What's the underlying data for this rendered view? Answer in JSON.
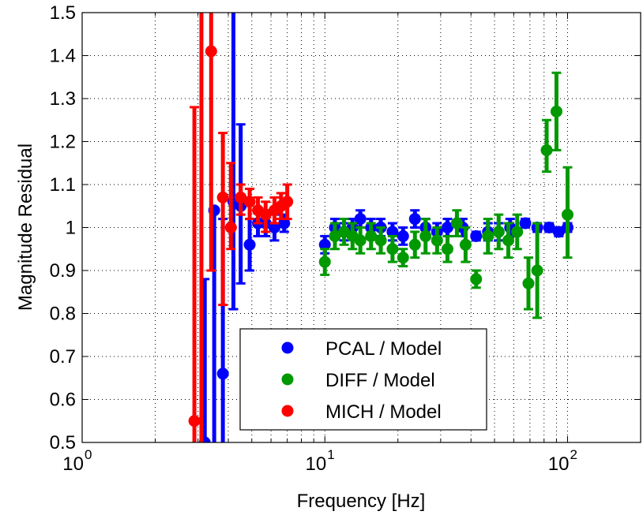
{
  "chart_data": {
    "type": "scatter",
    "title": "",
    "xlabel": "Frequency [Hz]",
    "ylabel": "Magnitude Residual",
    "xscale": "log",
    "xlim": [
      1,
      200
    ],
    "ylim": [
      0.5,
      1.5
    ],
    "grid": true,
    "legend_position": "bottom-center",
    "x_ticks": [
      {
        "value": 1,
        "base": "10",
        "exp": "0"
      },
      {
        "value": 10,
        "base": "10",
        "exp": "1"
      },
      {
        "value": 100,
        "base": "10",
        "exp": "2"
      }
    ],
    "y_ticks": [
      "0.5",
      "0.6",
      "0.7",
      "0.8",
      "0.9",
      "1",
      "1.1",
      "1.2",
      "1.3",
      "1.4",
      "1.5"
    ],
    "series": [
      {
        "name": "PCAL / Model",
        "color": "#0000ff",
        "points": [
          {
            "x": 3.2,
            "y": 0.5,
            "lo": 0.35,
            "hi": 0.88
          },
          {
            "x": 3.5,
            "y": 1.04,
            "lo": 0.3,
            "hi": 1.04
          },
          {
            "x": 3.8,
            "y": 0.66,
            "lo": 0.4,
            "hi": 1.02
          },
          {
            "x": 4.2,
            "y": 1.06,
            "lo": 0.81,
            "hi": 1.55
          },
          {
            "x": 4.5,
            "y": 1.05,
            "lo": 0.87,
            "hi": 1.24
          },
          {
            "x": 4.9,
            "y": 0.96,
            "lo": 0.9,
            "hi": 1.02
          },
          {
            "x": 5.3,
            "y": 1.01,
            "lo": 0.98,
            "hi": 1.04
          },
          {
            "x": 5.7,
            "y": 1.01,
            "lo": 0.98,
            "hi": 1.04
          },
          {
            "x": 6.2,
            "y": 1.0,
            "lo": 0.97,
            "hi": 1.03
          },
          {
            "x": 6.8,
            "y": 1.01,
            "lo": 0.99,
            "hi": 1.03
          },
          {
            "x": 10,
            "y": 0.96,
            "lo": 0.94,
            "hi": 0.98
          },
          {
            "x": 11,
            "y": 1.0,
            "lo": 0.98,
            "hi": 1.02
          },
          {
            "x": 12,
            "y": 0.99,
            "lo": 0.97,
            "hi": 1.01
          },
          {
            "x": 13,
            "y": 1.0,
            "lo": 0.98,
            "hi": 1.02
          },
          {
            "x": 14,
            "y": 1.02,
            "lo": 1.0,
            "hi": 1.04
          },
          {
            "x": 15.5,
            "y": 1.0,
            "lo": 0.98,
            "hi": 1.02
          },
          {
            "x": 17,
            "y": 1.0,
            "lo": 0.98,
            "hi": 1.02
          },
          {
            "x": 19,
            "y": 0.99,
            "lo": 0.97,
            "hi": 1.01
          },
          {
            "x": 21,
            "y": 0.98,
            "lo": 0.96,
            "hi": 1.0
          },
          {
            "x": 23.5,
            "y": 1.02,
            "lo": 1.0,
            "hi": 1.04
          },
          {
            "x": 26,
            "y": 1.0,
            "lo": 0.98,
            "hi": 1.02
          },
          {
            "x": 29,
            "y": 0.99,
            "lo": 0.97,
            "hi": 1.01
          },
          {
            "x": 32,
            "y": 1.0,
            "lo": 0.98,
            "hi": 1.02
          },
          {
            "x": 37,
            "y": 1.0,
            "lo": 0.98,
            "hi": 1.02
          },
          {
            "x": 42,
            "y": 0.98,
            "lo": 0.97,
            "hi": 0.99
          },
          {
            "x": 47,
            "y": 0.99,
            "lo": 0.97,
            "hi": 1.01
          },
          {
            "x": 52,
            "y": 0.99,
            "lo": 0.97,
            "hi": 1.01
          },
          {
            "x": 58,
            "y": 1.0,
            "lo": 0.98,
            "hi": 1.02
          },
          {
            "x": 67,
            "y": 1.01,
            "lo": 1.0,
            "hi": 1.02
          },
          {
            "x": 75,
            "y": 1.0,
            "lo": 0.99,
            "hi": 1.01
          },
          {
            "x": 84,
            "y": 1.0,
            "lo": 0.99,
            "hi": 1.01
          },
          {
            "x": 92,
            "y": 0.99,
            "lo": 0.98,
            "hi": 1.0
          },
          {
            "x": 100,
            "y": 1.0,
            "lo": 0.99,
            "hi": 1.01
          }
        ]
      },
      {
        "name": "DIFF / Model",
        "color": "#009900",
        "points": [
          {
            "x": 10,
            "y": 0.92,
            "lo": 0.89,
            "hi": 0.95
          },
          {
            "x": 11,
            "y": 0.98,
            "lo": 0.95,
            "hi": 1.01
          },
          {
            "x": 12,
            "y": 0.99,
            "lo": 0.96,
            "hi": 1.02
          },
          {
            "x": 13,
            "y": 0.98,
            "lo": 0.95,
            "hi": 1.01
          },
          {
            "x": 14,
            "y": 0.97,
            "lo": 0.94,
            "hi": 1.0
          },
          {
            "x": 15.5,
            "y": 0.98,
            "lo": 0.95,
            "hi": 1.01
          },
          {
            "x": 17,
            "y": 0.97,
            "lo": 0.94,
            "hi": 1.0
          },
          {
            "x": 19,
            "y": 0.95,
            "lo": 0.92,
            "hi": 0.98
          },
          {
            "x": 21,
            "y": 0.93,
            "lo": 0.91,
            "hi": 0.95
          },
          {
            "x": 23.5,
            "y": 0.96,
            "lo": 0.93,
            "hi": 0.99
          },
          {
            "x": 26,
            "y": 0.98,
            "lo": 0.94,
            "hi": 1.02
          },
          {
            "x": 29,
            "y": 0.97,
            "lo": 0.94,
            "hi": 1.0
          },
          {
            "x": 32,
            "y": 0.95,
            "lo": 0.92,
            "hi": 0.98
          },
          {
            "x": 35,
            "y": 1.01,
            "lo": 0.98,
            "hi": 1.04
          },
          {
            "x": 38,
            "y": 0.96,
            "lo": 0.92,
            "hi": 1.0
          },
          {
            "x": 42,
            "y": 0.88,
            "lo": 0.86,
            "hi": 0.9
          },
          {
            "x": 47,
            "y": 0.98,
            "lo": 0.94,
            "hi": 1.02
          },
          {
            "x": 52,
            "y": 0.99,
            "lo": 0.95,
            "hi": 1.03
          },
          {
            "x": 57,
            "y": 0.97,
            "lo": 0.93,
            "hi": 1.01
          },
          {
            "x": 62,
            "y": 0.99,
            "lo": 0.95,
            "hi": 1.03
          },
          {
            "x": 69,
            "y": 0.87,
            "lo": 0.81,
            "hi": 0.93
          },
          {
            "x": 75,
            "y": 0.9,
            "lo": 0.79,
            "hi": 1.01
          },
          {
            "x": 82,
            "y": 1.18,
            "lo": 1.13,
            "hi": 1.25
          },
          {
            "x": 90,
            "y": 1.27,
            "lo": 1.18,
            "hi": 1.36
          },
          {
            "x": 100,
            "y": 1.03,
            "lo": 0.93,
            "hi": 1.14
          }
        ]
      },
      {
        "name": "MICH / Model",
        "color": "#ff0000",
        "points": [
          {
            "x": 2.9,
            "y": 0.55,
            "lo": 0.35,
            "hi": 1.28
          },
          {
            "x": 3.1,
            "y": 1.55,
            "lo": 0.45,
            "hi": 1.6
          },
          {
            "x": 3.4,
            "y": 1.41,
            "lo": 0.9,
            "hi": 1.55
          },
          {
            "x": 3.8,
            "y": 1.07,
            "lo": 0.82,
            "hi": 1.22
          },
          {
            "x": 4.1,
            "y": 1.0,
            "lo": 0.95,
            "hi": 1.15
          },
          {
            "x": 4.5,
            "y": 1.07,
            "lo": 1.03,
            "hi": 1.1
          },
          {
            "x": 4.9,
            "y": 1.06,
            "lo": 1.02,
            "hi": 1.09
          },
          {
            "x": 5.3,
            "y": 1.04,
            "lo": 1.01,
            "hi": 1.07
          },
          {
            "x": 5.7,
            "y": 1.03,
            "lo": 0.99,
            "hi": 1.06
          },
          {
            "x": 6.2,
            "y": 1.04,
            "lo": 1.01,
            "hi": 1.07
          },
          {
            "x": 6.6,
            "y": 1.05,
            "lo": 1.02,
            "hi": 1.08
          },
          {
            "x": 7.0,
            "y": 1.06,
            "lo": 1.02,
            "hi": 1.1
          }
        ]
      }
    ]
  }
}
